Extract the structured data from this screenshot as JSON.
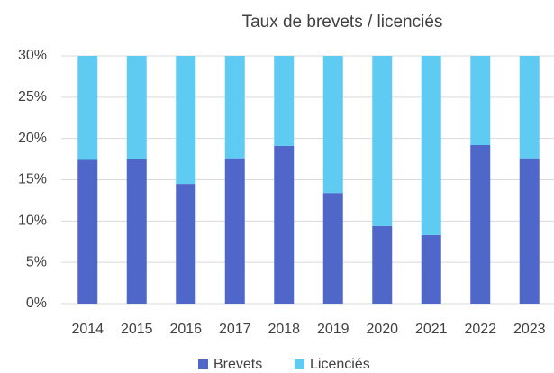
{
  "chart_data": {
    "type": "stacked_bar",
    "title": "Taux de brevets / licenciés",
    "categories": [
      "2014",
      "2015",
      "2016",
      "2017",
      "2018",
      "2019",
      "2020",
      "2021",
      "2022",
      "2023"
    ],
    "series": [
      {
        "name": "Brevets",
        "color": "#4f67c9",
        "values": [
          17.4,
          17.5,
          14.5,
          17.6,
          19.1,
          13.4,
          9.4,
          8.3,
          19.2,
          17.6
        ]
      },
      {
        "name": "Licenciés",
        "color": "#5fcbf2",
        "values": [
          12.6,
          12.5,
          15.5,
          12.4,
          10.9,
          16.6,
          20.6,
          21.7,
          10.8,
          12.4
        ]
      }
    ],
    "ylim": [
      0,
      30
    ],
    "yticks": [
      {
        "value": 0,
        "label": "0%"
      },
      {
        "value": 5,
        "label": "5%"
      },
      {
        "value": 10,
        "label": "10%"
      },
      {
        "value": 15,
        "label": "15%"
      },
      {
        "value": 20,
        "label": "20%"
      },
      {
        "value": 25,
        "label": "25%"
      },
      {
        "value": 30,
        "label": "30%"
      }
    ],
    "grid": true,
    "legend": "bottom"
  }
}
